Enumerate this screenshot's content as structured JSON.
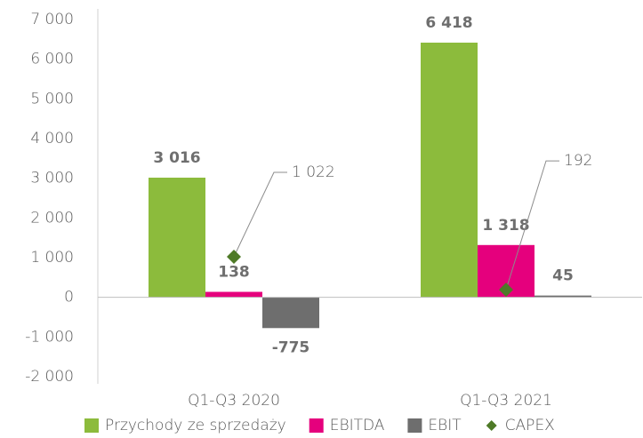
{
  "chart_data": {
    "type": "bar",
    "categories": [
      "Q1-Q3 2020",
      "Q1-Q3 2021"
    ],
    "series": [
      {
        "name": "Przychody ze sprzedaży",
        "color": "#8cbb3c",
        "values": [
          3016,
          6418
        ],
        "value_labels": [
          "3 016",
          "6 418"
        ]
      },
      {
        "name": "EBITDA",
        "color": "#e5007d",
        "values": [
          138,
          1318
        ],
        "value_labels": [
          "138",
          "1 318"
        ]
      },
      {
        "name": "EBIT",
        "color": "#6e6e6e",
        "values": [
          -775,
          45
        ],
        "value_labels": [
          "-775",
          "45"
        ]
      },
      {
        "name": "CAPEX",
        "color": "#4e7a27",
        "marker": "diamond",
        "values": [
          1022,
          192
        ],
        "value_labels": [
          "1 022",
          "192"
        ]
      }
    ],
    "ylim": [
      -2000,
      7000
    ],
    "yticks": [
      {
        "value": -2000,
        "label": "-2 000"
      },
      {
        "value": -1000,
        "label": "-1 000"
      },
      0,
      {
        "value": 1000,
        "label": "1 000"
      },
      {
        "value": 2000,
        "label": "2 000"
      },
      {
        "value": 3000,
        "label": "3 000"
      },
      {
        "value": 4000,
        "label": "4 000"
      },
      {
        "value": 5000,
        "label": "5 000"
      },
      {
        "value": 6000,
        "label": "6 000"
      },
      {
        "value": 7000,
        "label": "7 000"
      }
    ],
    "legend": "bottom"
  }
}
